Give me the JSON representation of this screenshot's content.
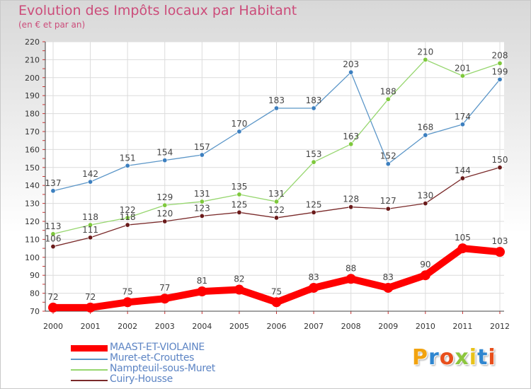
{
  "header": {
    "title": "Evolution des Impôts locaux par Habitant",
    "subtitle": "(en € et par an)"
  },
  "logo": {
    "text": "Proxiti",
    "colors": [
      "#f2a30f",
      "#2f86d0",
      "#e84f1c",
      "#8cc63e",
      "#e8c21a",
      "#2f86d0",
      "#e84f1c"
    ]
  },
  "chart_data": {
    "type": "line",
    "x": [
      "2000",
      "2001",
      "2002",
      "2003",
      "2004",
      "2005",
      "2006",
      "2007",
      "2008",
      "2009",
      "2010",
      "2011",
      "2012"
    ],
    "ylim": [
      70,
      220
    ],
    "yticks": [
      70,
      80,
      90,
      100,
      110,
      120,
      130,
      140,
      150,
      160,
      170,
      180,
      190,
      200,
      210,
      220
    ],
    "grid": true,
    "legend_position": "bottom-left",
    "series": [
      {
        "name": "MAAST-ET-VIOLAINE",
        "color": "#ff0000",
        "point_color": "#ff0000",
        "values": [
          72,
          72,
          75,
          77,
          81,
          82,
          75,
          83,
          88,
          83,
          90,
          105,
          103
        ],
        "labels": [
          "72",
          "72",
          "75",
          "77",
          "81",
          "82",
          "75",
          "83",
          "88",
          "83",
          "90",
          "105",
          "103"
        ],
        "bold": true
      },
      {
        "name": "Muret-et-Crouttes",
        "color": "#5b96c8",
        "point_color": "#3c7fbf",
        "values": [
          137,
          142,
          151,
          154,
          157,
          170,
          183,
          183,
          203,
          152,
          168,
          174,
          199
        ],
        "labels": [
          "137",
          "142",
          "151",
          "154",
          "157",
          "170",
          "183",
          "183",
          "203",
          "152",
          "168",
          "174",
          "199"
        ],
        "bold": false
      },
      {
        "name": "Nampteuil-sous-Muret",
        "color": "#96d66e",
        "point_color": "#7ec83c",
        "values": [
          113,
          118,
          122,
          129,
          131,
          135,
          131,
          153,
          163,
          188,
          210,
          201,
          208
        ],
        "labels": [
          "113",
          "118",
          "122",
          "129",
          "131",
          "135",
          "131",
          "153",
          "163",
          "188",
          "210",
          "201",
          "208"
        ],
        "bold": false
      },
      {
        "name": "Cuiry-Housse",
        "color": "#7a2a2a",
        "point_color": "#6a1a1a",
        "values": [
          106,
          111,
          118,
          120,
          123,
          125,
          122,
          125,
          128,
          127,
          130,
          144,
          150
        ],
        "labels": [
          "106",
          "111",
          "118",
          "120",
          "123",
          "125",
          "122",
          "125",
          "128",
          "127",
          "130",
          "144",
          "150"
        ],
        "bold": false
      }
    ]
  }
}
